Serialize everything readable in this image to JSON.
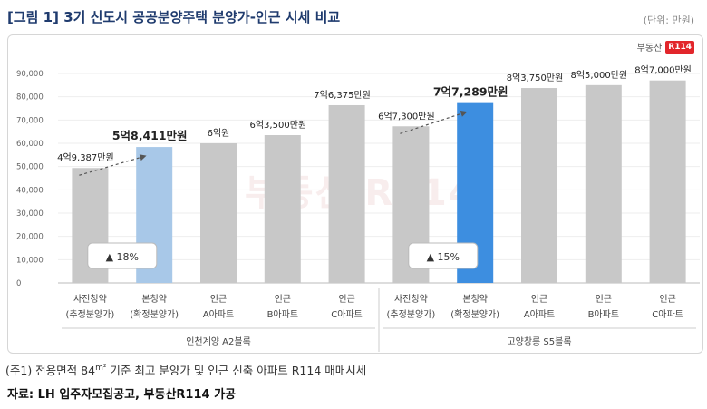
{
  "title": "[그림 1] 3기 신도시 공공분양주택 분양가-인근 시세 비교",
  "unit": "(단위: 만원)",
  "brand": {
    "name": "부동산",
    "badge": "R114"
  },
  "watermark": "부동산 R114",
  "note": {
    "prefix": "(주1) 전용면적 84",
    "sup": "m²",
    "suffix": " 기준 최고 분양가 및 인근 신축 아파트 R114 매매시세"
  },
  "source": "자료: LH 입주자모집공고, 부동산R114 가공",
  "colors": {
    "gray": "#c8c8c8",
    "light_blue": "#a8c8e8",
    "blue": "#3d8ee0",
    "title": "#1f3b6e"
  },
  "chart_data": {
    "type": "bar",
    "ylim": [
      0,
      90000
    ],
    "yticks": [
      "0",
      "10,000",
      "20,000",
      "30,000",
      "40,000",
      "50,000",
      "60,000",
      "70,000",
      "80,000",
      "90,000"
    ],
    "groups": [
      {
        "name": "인천계양 A2블록",
        "bars": [
          {
            "cat1": "사전청약",
            "cat2": "(추정분양가)",
            "value": 49387,
            "label": "4억9,387만원",
            "emph": false,
            "color": "gray"
          },
          {
            "cat1": "본청약",
            "cat2": "(확정분양가)",
            "value": 58411,
            "label": "5억8,411만원",
            "emph": true,
            "color": "light_blue"
          },
          {
            "cat1": "인근",
            "cat2": "A아파트",
            "value": 60000,
            "label": "6억원",
            "emph": false,
            "color": "gray"
          },
          {
            "cat1": "인근",
            "cat2": "B아파트",
            "value": 63500,
            "label": "6억3,500만원",
            "emph": false,
            "color": "gray"
          },
          {
            "cat1": "인근",
            "cat2": "C아파트",
            "value": 76375,
            "label": "7억6,375만원",
            "emph": false,
            "color": "gray"
          }
        ],
        "change": "▲ 18%"
      },
      {
        "name": "고양창릉 S5블록",
        "bars": [
          {
            "cat1": "사전청약",
            "cat2": "(추정분양가)",
            "value": 67300,
            "label": "6억7,300만원",
            "emph": false,
            "color": "gray"
          },
          {
            "cat1": "본청약",
            "cat2": "(확정분양가)",
            "value": 77289,
            "label": "7억7,289만원",
            "emph": true,
            "color": "blue"
          },
          {
            "cat1": "인근",
            "cat2": "A아파트",
            "value": 83750,
            "label": "8억3,750만원",
            "emph": false,
            "color": "gray"
          },
          {
            "cat1": "인근",
            "cat2": "B아파트",
            "value": 85000,
            "label": "8억5,000만원",
            "emph": false,
            "color": "gray"
          },
          {
            "cat1": "인근",
            "cat2": "C아파트",
            "value": 87000,
            "label": "8억7,000만원",
            "emph": false,
            "color": "gray"
          }
        ],
        "change": "▲ 15%"
      }
    ]
  }
}
